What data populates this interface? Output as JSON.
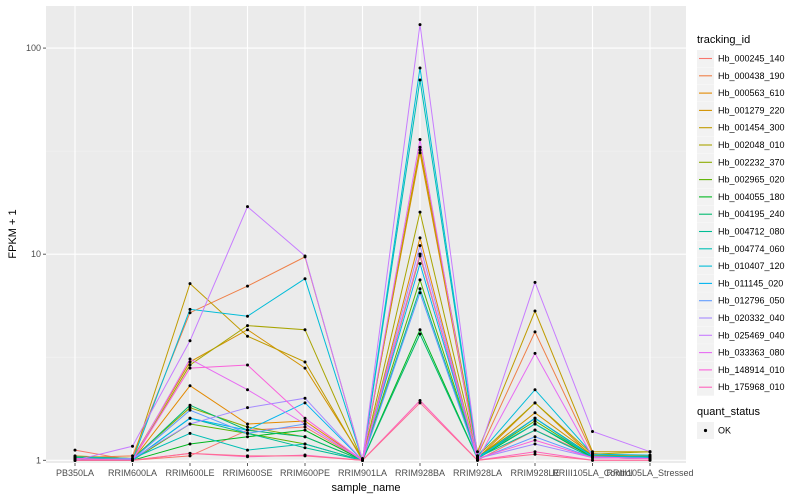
{
  "chart_data": {
    "type": "line",
    "y_scale": "log10",
    "ylim": [
      0.97,
      160
    ],
    "yticks": [
      1,
      10,
      100
    ],
    "xlabel": "sample_name",
    "ylabel": "FPKM + 1",
    "grid": true,
    "legend_position": "right",
    "categories": [
      "PB350LA",
      "RRIM600LA",
      "RRIM600LE",
      "RRIM600SE",
      "RRIM600PE",
      "RRIM901LA",
      "RRIM928BA",
      "RRIM928LA",
      "RRIM928LE",
      "RRIII105LA_Control",
      "RRIII105LA_Stressed"
    ],
    "legend": {
      "title": "tracking_id",
      "shape_title": "quant_status",
      "shape_label": "OK"
    },
    "series": [
      {
        "name": "Hb_000245_140",
        "color": "#F8766D",
        "values": [
          1.12,
          1.0,
          1.05,
          1.4,
          1.45,
          1.0,
          10.0,
          1.0,
          1.4,
          1.05,
          1.02
        ]
      },
      {
        "name": "Hb_000438_190",
        "color": "#EF7F47",
        "values": [
          1.03,
          1.05,
          5.2,
          7.0,
          9.7,
          1.0,
          32.0,
          1.05,
          4.2,
          1.08,
          1.03
        ]
      },
      {
        "name": "Hb_000563_610",
        "color": "#E38900",
        "values": [
          1.02,
          1.0,
          2.3,
          1.5,
          1.55,
          1.0,
          12.0,
          1.02,
          1.9,
          1.04,
          1.03
        ]
      },
      {
        "name": "Hb_001279_220",
        "color": "#D39200",
        "values": [
          1.05,
          1.02,
          3.0,
          4.3,
          2.8,
          1.02,
          31.0,
          1.03,
          1.7,
          1.06,
          1.05
        ]
      },
      {
        "name": "Hb_001454_300",
        "color": "#C09B00",
        "values": [
          1.0,
          1.0,
          7.2,
          4.0,
          3.0,
          1.0,
          33.0,
          1.1,
          5.3,
          1.1,
          1.1
        ]
      },
      {
        "name": "Hb_002048_010",
        "color": "#A8A400",
        "values": [
          1.0,
          1.0,
          2.9,
          4.5,
          4.3,
          1.0,
          16.0,
          1.05,
          1.9,
          1.07,
          1.1
        ]
      },
      {
        "name": "Hb_002232_370",
        "color": "#8CAB00",
        "values": [
          1.04,
          1.02,
          1.8,
          1.45,
          1.3,
          1.0,
          9.8,
          1.04,
          1.6,
          1.05,
          1.04
        ]
      },
      {
        "name": "Hb_002965_020",
        "color": "#5CB300",
        "values": [
          1.02,
          1.0,
          1.5,
          1.35,
          1.2,
          1.0,
          7.5,
          1.03,
          1.55,
          1.04,
          1.04
        ]
      },
      {
        "name": "Hb_004055_180",
        "color": "#00B81F",
        "values": [
          1.0,
          1.0,
          1.2,
          1.3,
          1.4,
          1.0,
          4.3,
          1.02,
          1.5,
          1.03,
          1.02
        ]
      },
      {
        "name": "Hb_004195_240",
        "color": "#00BB6E",
        "values": [
          1.03,
          1.01,
          1.85,
          1.4,
          1.3,
          1.0,
          4.1,
          1.02,
          1.6,
          1.05,
          1.04
        ]
      },
      {
        "name": "Hb_004712_080",
        "color": "#00BD94",
        "values": [
          1.02,
          1.0,
          1.6,
          1.35,
          1.15,
          1.0,
          6.8,
          1.03,
          1.4,
          1.03,
          1.02
        ]
      },
      {
        "name": "Hb_004774_060",
        "color": "#00BFB4",
        "values": [
          1.04,
          1.02,
          1.35,
          1.12,
          1.2,
          1.0,
          70.0,
          1.04,
          1.5,
          1.05,
          1.04
        ]
      },
      {
        "name": "Hb_010407_120",
        "color": "#00BCD8",
        "values": [
          1.0,
          1.0,
          5.4,
          5.0,
          7.6,
          1.0,
          80.0,
          1.05,
          2.2,
          1.07,
          1.06
        ]
      },
      {
        "name": "Hb_011145_020",
        "color": "#00B4F0",
        "values": [
          1.02,
          1.0,
          1.6,
          1.4,
          1.9,
          1.0,
          9.0,
          1.02,
          1.6,
          1.04,
          1.03
        ]
      },
      {
        "name": "Hb_012796_050",
        "color": "#619CFF",
        "values": [
          1.02,
          1.01,
          1.75,
          1.35,
          1.5,
          1.0,
          6.5,
          1.01,
          1.3,
          1.03,
          1.02
        ]
      },
      {
        "name": "Hb_020332_040",
        "color": "#A58AFF",
        "values": [
          1.0,
          1.02,
          1.5,
          1.8,
          2.0,
          1.0,
          11.0,
          1.02,
          1.2,
          1.03,
          1.02
        ]
      },
      {
        "name": "Hb_025469_040",
        "color": "#C77CFF",
        "values": [
          1.0,
          1.17,
          3.8,
          17.0,
          9.8,
          1.0,
          130.0,
          1.05,
          7.3,
          1.38,
          1.1
        ]
      },
      {
        "name": "Hb_033363_080",
        "color": "#E76BF3",
        "values": [
          1.0,
          1.0,
          3.1,
          2.2,
          1.5,
          1.0,
          36.0,
          1.0,
          3.3,
          1.04,
          1.02
        ]
      },
      {
        "name": "Hb_148914_010",
        "color": "#FA62DB",
        "values": [
          1.02,
          1.0,
          2.8,
          2.9,
          1.6,
          1.0,
          10.0,
          1.02,
          1.25,
          1.03,
          1.02
        ]
      },
      {
        "name": "Hb_175968_010",
        "color": "#FF62BC",
        "values": [
          1.0,
          1.0,
          1.08,
          1.04,
          1.06,
          1.0,
          1.95,
          1.0,
          1.1,
          1.0,
          1.0
        ]
      },
      {
        "name": "",
        "color": "#FF6C91",
        "values": [
          1.0,
          1.0,
          1.08,
          1.05,
          1.05,
          1.0,
          1.9,
          1.0,
          1.07,
          1.0,
          1.0
        ]
      }
    ]
  }
}
